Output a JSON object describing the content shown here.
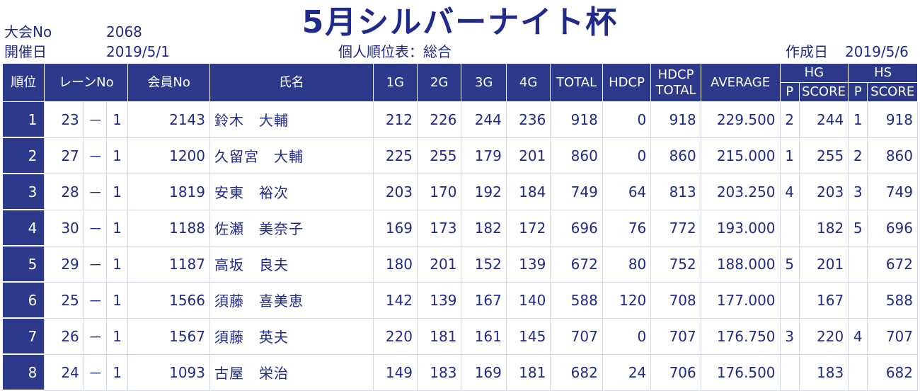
{
  "header": {
    "title": "5月シルバーナイト杯",
    "tournament_label": "大会No",
    "tournament_no": "2068",
    "date_label": "開催日",
    "date": "2019/5/1",
    "report_title": "個人順位表：総合",
    "created_label": "作成日",
    "created_date": "2019/5/6"
  },
  "columns": {
    "rank": "順位",
    "lane": "レーンNo",
    "member": "会員No",
    "name": "氏名",
    "g1": "1G",
    "g2": "2G",
    "g3": "3G",
    "g4": "4G",
    "total": "TOTAL",
    "hdcp": "HDCP",
    "hdcp_total_1": "HDCP",
    "hdcp_total_2": "TOTAL",
    "average": "AVERAGE",
    "hg": "HG",
    "hs": "HS",
    "p": "P",
    "score": "SCORE"
  },
  "rows": [
    {
      "rank": "1",
      "lane": "23",
      "dash": "－",
      "lane_sub": "1",
      "member": "2143",
      "name": "鈴木　大輔",
      "g1": "212",
      "g2": "226",
      "g3": "244",
      "g4": "236",
      "total": "918",
      "hdcp": "0",
      "hdcp_total": "918",
      "average": "229.500",
      "hg_p": "2",
      "hg_score": "244",
      "hs_p": "1",
      "hs_score": "918"
    },
    {
      "rank": "2",
      "lane": "27",
      "dash": "－",
      "lane_sub": "1",
      "member": "1200",
      "name": "久留宮　大輔",
      "g1": "225",
      "g2": "255",
      "g3": "179",
      "g4": "201",
      "total": "860",
      "hdcp": "0",
      "hdcp_total": "860",
      "average": "215.000",
      "hg_p": "1",
      "hg_score": "255",
      "hs_p": "2",
      "hs_score": "860"
    },
    {
      "rank": "3",
      "lane": "28",
      "dash": "－",
      "lane_sub": "1",
      "member": "1819",
      "name": "安東　裕次",
      "g1": "203",
      "g2": "170",
      "g3": "192",
      "g4": "184",
      "total": "749",
      "hdcp": "64",
      "hdcp_total": "813",
      "average": "203.250",
      "hg_p": "4",
      "hg_score": "203",
      "hs_p": "3",
      "hs_score": "749"
    },
    {
      "rank": "4",
      "lane": "30",
      "dash": "－",
      "lane_sub": "1",
      "member": "1188",
      "name": "佐瀬　美奈子",
      "g1": "169",
      "g2": "173",
      "g3": "182",
      "g4": "172",
      "total": "696",
      "hdcp": "76",
      "hdcp_total": "772",
      "average": "193.000",
      "hg_p": "",
      "hg_score": "182",
      "hs_p": "5",
      "hs_score": "696"
    },
    {
      "rank": "5",
      "lane": "29",
      "dash": "－",
      "lane_sub": "1",
      "member": "1187",
      "name": "高坂　良夫",
      "g1": "180",
      "g2": "201",
      "g3": "152",
      "g4": "139",
      "total": "672",
      "hdcp": "80",
      "hdcp_total": "752",
      "average": "188.000",
      "hg_p": "5",
      "hg_score": "201",
      "hs_p": "",
      "hs_score": "672"
    },
    {
      "rank": "6",
      "lane": "25",
      "dash": "－",
      "lane_sub": "1",
      "member": "1566",
      "name": "須藤　喜美恵",
      "g1": "142",
      "g2": "139",
      "g3": "167",
      "g4": "140",
      "total": "588",
      "hdcp": "120",
      "hdcp_total": "708",
      "average": "177.000",
      "hg_p": "",
      "hg_score": "167",
      "hs_p": "",
      "hs_score": "588"
    },
    {
      "rank": "7",
      "lane": "26",
      "dash": "－",
      "lane_sub": "1",
      "member": "1567",
      "name": "須藤　英夫",
      "g1": "220",
      "g2": "181",
      "g3": "161",
      "g4": "145",
      "total": "707",
      "hdcp": "0",
      "hdcp_total": "707",
      "average": "176.750",
      "hg_p": "3",
      "hg_score": "220",
      "hs_p": "4",
      "hs_score": "707"
    },
    {
      "rank": "8",
      "lane": "24",
      "dash": "－",
      "lane_sub": "1",
      "member": "1093",
      "name": "古屋　栄治",
      "g1": "149",
      "g2": "183",
      "g3": "169",
      "g4": "181",
      "total": "682",
      "hdcp": "24",
      "hdcp_total": "706",
      "average": "176.500",
      "hg_p": "",
      "hg_score": "183",
      "hs_p": "",
      "hs_score": "682"
    }
  ]
}
